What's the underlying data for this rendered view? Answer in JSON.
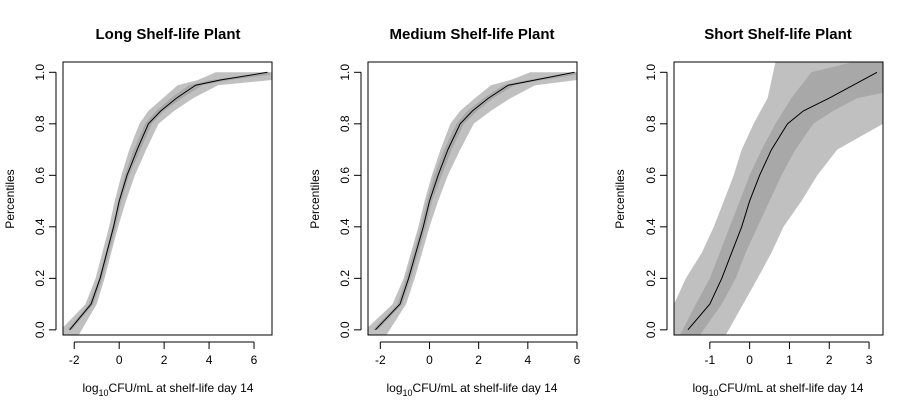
{
  "chart_data": [
    {
      "type": "line",
      "title": "Long Shelf-life Plant",
      "xlabel": {
        "prefix": "log",
        "sub": "10",
        "rest": "CFU/mL at shelf-life day 14"
      },
      "ylabel": "Percentiles",
      "xlim": [
        -2.5,
        6.8
      ],
      "ylim": [
        -0.02,
        1.04
      ],
      "xticks": [
        -2,
        0,
        2,
        4,
        6
      ],
      "yticks": [
        0.0,
        0.2,
        0.4,
        0.6,
        0.8,
        1.0
      ],
      "ytick_labels": [
        "0.0",
        "0.2",
        "0.4",
        "0.6",
        "0.8",
        "1.0"
      ],
      "grid": false,
      "colors": {
        "outer_band": "#c0c0c0",
        "inner_band": "#a8a8a8",
        "line": "#000000"
      },
      "series": [
        {
          "role": "median",
          "x": [
            -2.2,
            -1.25,
            -0.85,
            -0.55,
            -0.25,
            0.0,
            0.35,
            0.8,
            1.3,
            1.85,
            2.55,
            3.4,
            4.5,
            6.6
          ],
          "y": [
            0.0,
            0.1,
            0.2,
            0.3,
            0.4,
            0.5,
            0.6,
            0.7,
            0.8,
            0.85,
            0.9,
            0.95,
            0.97,
            1.0
          ]
        },
        {
          "role": "outer-band",
          "upper_x": [
            -2.6,
            -1.5,
            -1.05,
            -0.75,
            -0.45,
            -0.2,
            0.1,
            0.45,
            0.9,
            1.3,
            1.95,
            2.6,
            3.5,
            4.3,
            6.8
          ],
          "upper_y": [
            0.0,
            0.1,
            0.2,
            0.3,
            0.4,
            0.5,
            0.6,
            0.7,
            0.8,
            0.85,
            0.9,
            0.95,
            0.97,
            1.0,
            1.0
          ],
          "lower_x": [
            -2.5,
            -1.8,
            -1.0,
            -0.65,
            -0.35,
            -0.05,
            0.3,
            0.7,
            1.2,
            1.75,
            2.45,
            3.3,
            4.4,
            6.8
          ],
          "lower_y": [
            -0.02,
            -0.02,
            0.1,
            0.2,
            0.3,
            0.4,
            0.5,
            0.6,
            0.7,
            0.8,
            0.85,
            0.9,
            0.95,
            0.97
          ]
        },
        {
          "role": "inner-band",
          "upper_x": [
            -2.3,
            -1.35,
            -0.9,
            -0.6,
            -0.3,
            -0.05,
            0.25,
            0.65,
            1.15,
            1.65,
            2.3,
            3.1,
            4.1,
            6.7
          ],
          "upper_y": [
            0.0,
            0.1,
            0.2,
            0.3,
            0.4,
            0.5,
            0.6,
            0.7,
            0.8,
            0.85,
            0.9,
            0.95,
            0.97,
            1.0
          ],
          "lower_x": [
            -2.1,
            -1.15,
            -0.75,
            -0.45,
            -0.15,
            0.1,
            0.45,
            0.95,
            1.45,
            2.0,
            2.8,
            3.7,
            4.9,
            6.7
          ],
          "lower_y": [
            0.0,
            0.1,
            0.2,
            0.3,
            0.4,
            0.5,
            0.6,
            0.7,
            0.8,
            0.85,
            0.9,
            0.95,
            0.97,
            0.99
          ]
        }
      ]
    },
    {
      "type": "line",
      "title": "Medium Shelf-life Plant",
      "xlabel": {
        "prefix": "log",
        "sub": "10",
        "rest": "CFU/mL at shelf-life day 14"
      },
      "ylabel": "Percentiles",
      "xlim": [
        -2.5,
        6.0
      ],
      "ylim": [
        -0.02,
        1.04
      ],
      "xticks": [
        -2,
        0,
        2,
        4,
        6
      ],
      "yticks": [
        0.0,
        0.2,
        0.4,
        0.6,
        0.8,
        1.0
      ],
      "ytick_labels": [
        "0.0",
        "0.2",
        "0.4",
        "0.6",
        "0.8",
        "1.0"
      ],
      "grid": false,
      "colors": {
        "outer_band": "#c0c0c0",
        "inner_band": "#a8a8a8",
        "line": "#000000"
      },
      "series": [
        {
          "role": "median",
          "x": [
            -2.2,
            -1.2,
            -0.85,
            -0.55,
            -0.25,
            0.0,
            0.35,
            0.75,
            1.25,
            1.75,
            2.4,
            3.2,
            4.3,
            5.9
          ],
          "y": [
            0.0,
            0.1,
            0.2,
            0.3,
            0.4,
            0.5,
            0.6,
            0.7,
            0.8,
            0.85,
            0.9,
            0.95,
            0.97,
            1.0
          ]
        },
        {
          "role": "outer-band",
          "upper_x": [
            -2.6,
            -1.5,
            -1.05,
            -0.75,
            -0.45,
            -0.2,
            0.1,
            0.45,
            0.85,
            1.25,
            1.85,
            2.5,
            3.3,
            4.1,
            6.0
          ],
          "upper_y": [
            0.0,
            0.1,
            0.2,
            0.3,
            0.4,
            0.5,
            0.6,
            0.7,
            0.8,
            0.85,
            0.9,
            0.95,
            0.97,
            1.0,
            1.0
          ],
          "lower_x": [
            -2.5,
            -1.75,
            -0.95,
            -0.6,
            -0.3,
            0.0,
            0.35,
            0.75,
            1.25,
            1.8,
            2.5,
            3.3,
            4.3,
            6.0
          ],
          "lower_y": [
            -0.02,
            -0.02,
            0.1,
            0.2,
            0.3,
            0.4,
            0.5,
            0.6,
            0.7,
            0.8,
            0.85,
            0.9,
            0.95,
            0.97
          ]
        },
        {
          "role": "inner-band",
          "upper_x": [
            -2.3,
            -1.3,
            -0.95,
            -0.65,
            -0.35,
            -0.1,
            0.2,
            0.6,
            1.1,
            1.55,
            2.2,
            3.0,
            4.0,
            5.95
          ],
          "upper_y": [
            0.0,
            0.1,
            0.2,
            0.3,
            0.4,
            0.5,
            0.6,
            0.7,
            0.8,
            0.85,
            0.9,
            0.95,
            0.97,
            1.0
          ],
          "lower_x": [
            -2.1,
            -1.1,
            -0.75,
            -0.45,
            -0.15,
            0.1,
            0.5,
            0.9,
            1.4,
            1.95,
            2.6,
            3.45,
            4.6,
            5.95
          ],
          "lower_y": [
            0.0,
            0.1,
            0.2,
            0.3,
            0.4,
            0.5,
            0.6,
            0.7,
            0.8,
            0.85,
            0.9,
            0.95,
            0.97,
            0.99
          ]
        }
      ]
    },
    {
      "type": "line",
      "title": "Short Shelf-life Plant",
      "xlabel": {
        "prefix": "log",
        "sub": "10",
        "rest": "CFU/mL at shelf-life day 14"
      },
      "ylabel": "Percentiles",
      "xlim": [
        -1.9,
        3.35
      ],
      "ylim": [
        -0.02,
        1.04
      ],
      "xticks": [
        -1,
        0,
        1,
        2,
        3
      ],
      "yticks": [
        0.0,
        0.2,
        0.4,
        0.6,
        0.8,
        1.0
      ],
      "ytick_labels": [
        "0.0",
        "0.2",
        "0.4",
        "0.6",
        "0.8",
        "1.0"
      ],
      "grid": false,
      "colors": {
        "outer_band": "#c0c0c0",
        "inner_band": "#a8a8a8",
        "line": "#000000"
      },
      "series": [
        {
          "role": "median",
          "x": [
            -1.55,
            -1.0,
            -0.7,
            -0.45,
            -0.2,
            0.0,
            0.25,
            0.55,
            0.95,
            1.35,
            2.0,
            3.2
          ],
          "y": [
            0.0,
            0.1,
            0.2,
            0.3,
            0.4,
            0.5,
            0.6,
            0.7,
            0.8,
            0.85,
            0.9,
            1.0
          ]
        },
        {
          "role": "outer-band",
          "upper_x": [
            -1.9,
            -1.9,
            -1.6,
            -1.2,
            -0.9,
            -0.65,
            -0.4,
            -0.2,
            0.1,
            0.45,
            0.65,
            3.35
          ],
          "upper_y": [
            -0.02,
            0.1,
            0.2,
            0.3,
            0.4,
            0.5,
            0.6,
            0.7,
            0.8,
            0.9,
            1.04,
            1.04
          ],
          "lower_x": [
            -0.6,
            0.2,
            0.55,
            0.85,
            1.3,
            1.7,
            2.2,
            3.35
          ],
          "lower_y": [
            -0.02,
            0.2,
            0.3,
            0.4,
            0.5,
            0.6,
            0.7,
            0.8
          ]
        },
        {
          "role": "inner-band",
          "upper_x": [
            -1.75,
            -1.35,
            -1.0,
            -0.75,
            -0.5,
            -0.25,
            0.0,
            0.3,
            0.65,
            1.05,
            1.55,
            2.6,
            3.35
          ],
          "upper_y": [
            -0.02,
            0.1,
            0.2,
            0.3,
            0.4,
            0.5,
            0.6,
            0.7,
            0.8,
            0.9,
            1.0,
            1.04,
            1.04
          ],
          "lower_x": [
            -1.25,
            -0.7,
            -0.35,
            -0.1,
            0.2,
            0.5,
            0.8,
            1.15,
            1.6,
            2.1,
            2.7,
            3.35
          ],
          "lower_y": [
            -0.02,
            0.1,
            0.2,
            0.3,
            0.4,
            0.5,
            0.6,
            0.7,
            0.8,
            0.85,
            0.9,
            0.92
          ]
        }
      ]
    }
  ]
}
